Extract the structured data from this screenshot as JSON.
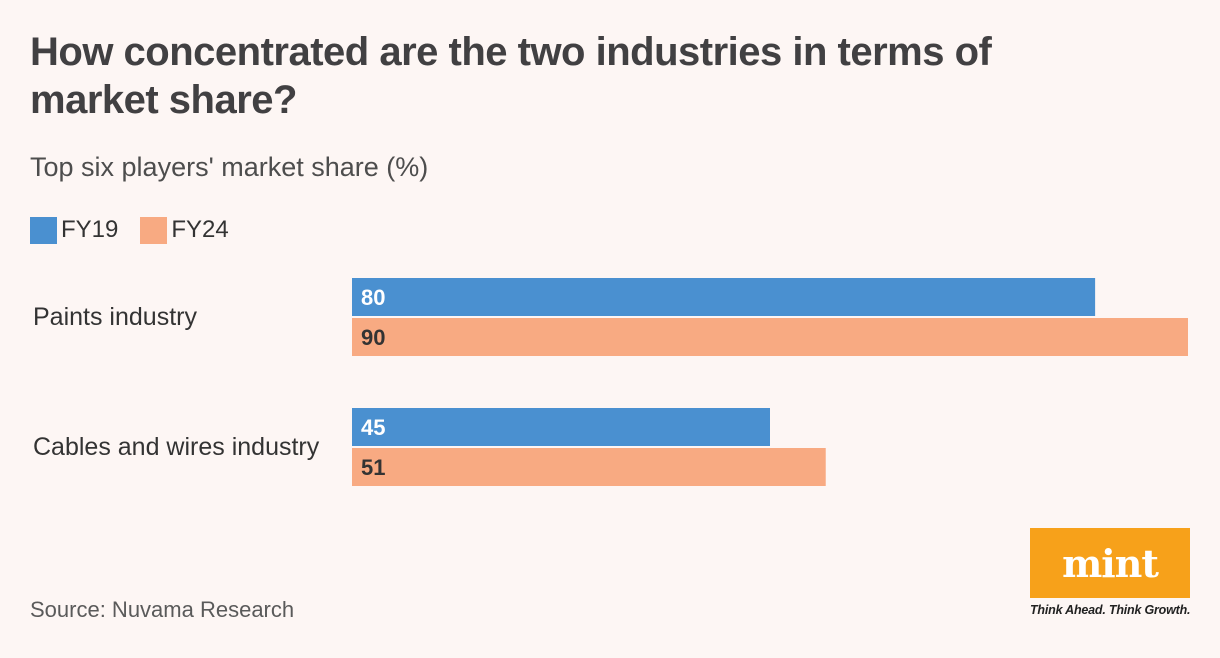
{
  "title": "How concentrated are the two industries in terms of market share?",
  "subtitle": "Top six players' market share (%)",
  "legend": [
    {
      "label": "FY19",
      "color": "#4a90d0"
    },
    {
      "label": "FY24",
      "color": "#f8aa82"
    }
  ],
  "source": "Source: Nuvama Research",
  "brand": {
    "name": "mint",
    "tagline": "Think Ahead. Think Growth.",
    "color": "#f7a11a"
  },
  "chart_data": {
    "type": "bar",
    "orientation": "horizontal",
    "title": "How concentrated are the two industries in terms of market share?",
    "subtitle": "Top six players' market share (%)",
    "categories": [
      "Paints industry",
      "Cables and wires industry"
    ],
    "series": [
      {
        "name": "FY19",
        "values": [
          80,
          45
        ],
        "color": "#4a90d0",
        "label_color": "#ffffff"
      },
      {
        "name": "FY24",
        "values": [
          90,
          51
        ],
        "color": "#f8aa82",
        "label_color": "#333333"
      }
    ],
    "xlim": [
      0,
      90
    ],
    "grid": false,
    "legend_position": "top-left"
  }
}
